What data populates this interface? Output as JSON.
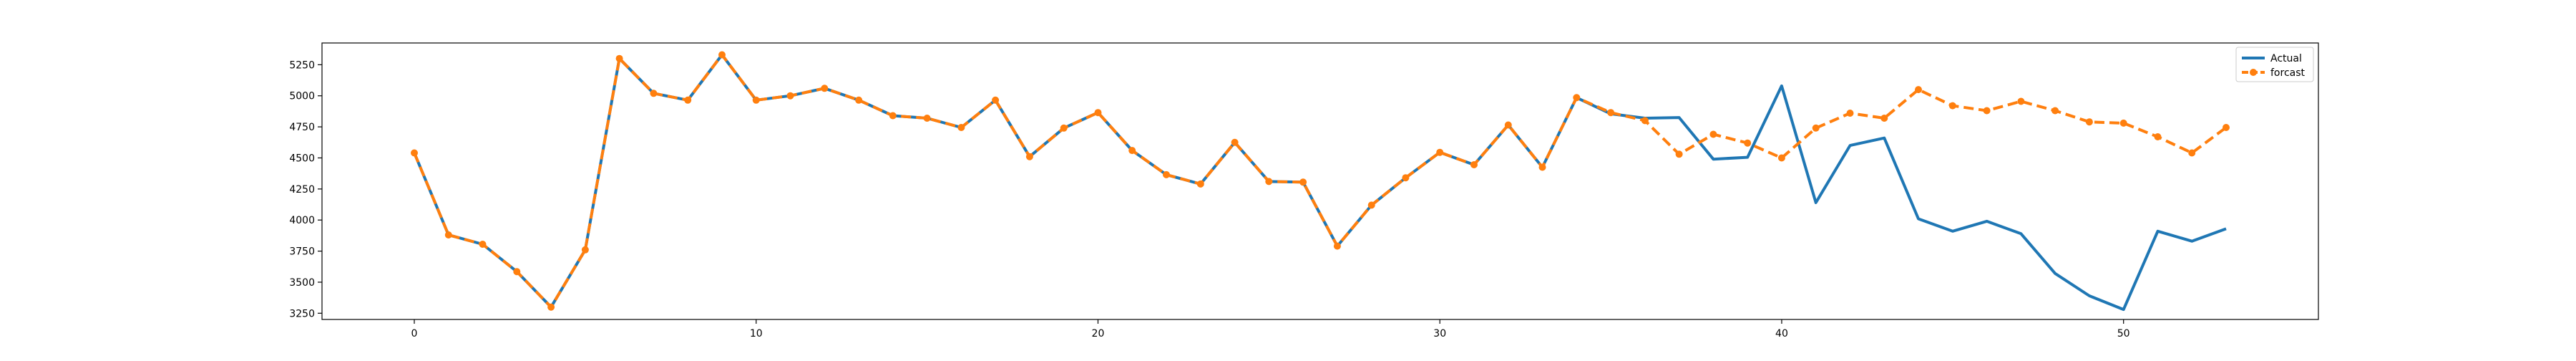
{
  "chart_data": {
    "type": "line",
    "title": "",
    "xlabel": "",
    "ylabel": "",
    "xlim": [
      -2.7,
      55.7
    ],
    "ylim": [
      3200,
      5425
    ],
    "x_ticks": [
      0,
      10,
      20,
      30,
      40,
      50
    ],
    "y_ticks": [
      3250,
      3500,
      3750,
      4000,
      4250,
      4500,
      4750,
      5000,
      5250
    ],
    "grid": false,
    "legend_position": "top-right",
    "colors": {
      "actual": "#1f77b4",
      "forecast": "#ff7f0e"
    },
    "series": [
      {
        "name": "Actual",
        "x": [
          0,
          1,
          2,
          3,
          4,
          5,
          6,
          7,
          8,
          9,
          10,
          11,
          12,
          13,
          14,
          15,
          16,
          17,
          18,
          19,
          20,
          21,
          22,
          23,
          24,
          25,
          26,
          27,
          28,
          29,
          30,
          31,
          32,
          33,
          34,
          35,
          36,
          37,
          38,
          39,
          40,
          41,
          42,
          43,
          44,
          45,
          46,
          47,
          48,
          49,
          50,
          51,
          52,
          53
        ],
        "values": [
          4540,
          3880,
          3805,
          3585,
          3300,
          3760,
          5300,
          5020,
          4965,
          5330,
          4965,
          5000,
          5060,
          4965,
          4840,
          4820,
          4745,
          4965,
          4510,
          4740,
          4865,
          4560,
          4365,
          4290,
          4625,
          4310,
          4305,
          3790,
          4120,
          4340,
          4545,
          4445,
          4765,
          4425,
          4985,
          4855,
          4820,
          4825,
          4490,
          4505,
          5080,
          4140,
          4600,
          4660,
          4010,
          3910,
          3990,
          3890,
          3570,
          3390,
          3280,
          3910,
          3830,
          3930
        ]
      },
      {
        "name": "forcast",
        "x": [
          0,
          1,
          2,
          3,
          4,
          5,
          6,
          7,
          8,
          9,
          10,
          11,
          12,
          13,
          14,
          15,
          16,
          17,
          18,
          19,
          20,
          21,
          22,
          23,
          24,
          25,
          26,
          27,
          28,
          29,
          30,
          31,
          32,
          33,
          34,
          35,
          36,
          37,
          38,
          39,
          40,
          41,
          42,
          43,
          44,
          45,
          46,
          47,
          48,
          49,
          50,
          51,
          52,
          53
        ],
        "values": [
          4540,
          3880,
          3805,
          3585,
          3300,
          3760,
          5300,
          5020,
          4965,
          5330,
          4965,
          5000,
          5060,
          4965,
          4840,
          4820,
          4745,
          4965,
          4510,
          4740,
          4865,
          4560,
          4365,
          4290,
          4625,
          4310,
          4305,
          3790,
          4120,
          4340,
          4545,
          4445,
          4765,
          4425,
          4985,
          4865,
          4800,
          4530,
          4690,
          4620,
          4500,
          4740,
          4860,
          4820,
          5050,
          4920,
          4880,
          4955,
          4880,
          4790,
          4780,
          4670,
          4540,
          4745
        ]
      }
    ]
  }
}
